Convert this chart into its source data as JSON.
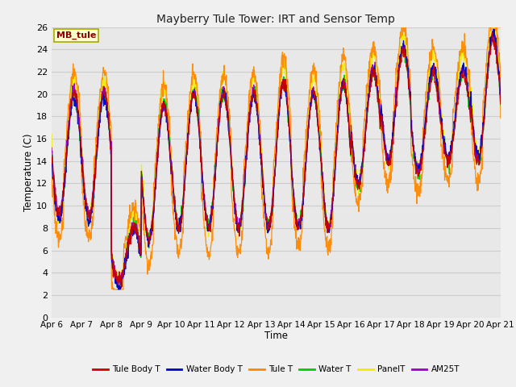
{
  "title": "Mayberry Tule Tower: IRT and Sensor Temp",
  "xlabel": "Time",
  "ylabel": "Temperature (C)",
  "ylim": [
    0,
    26
  ],
  "yticks": [
    0,
    2,
    4,
    6,
    8,
    10,
    12,
    14,
    16,
    18,
    20,
    22,
    24,
    26
  ],
  "x_labels": [
    "Apr 6",
    "Apr 7",
    "Apr 8",
    "Apr 9",
    "Apr 10",
    "Apr 11",
    "Apr 12",
    "Apr 13",
    "Apr 14",
    "Apr 15",
    "Apr 16",
    "Apr 17",
    "Apr 18",
    "Apr 19",
    "Apr 20",
    "Apr 21"
  ],
  "series_colors": {
    "Tule Body T": "#cc0000",
    "Water Body T": "#0000cc",
    "Tule T": "#ff8800",
    "Water T": "#00cc00",
    "PanelT": "#eeee00",
    "AM25T": "#9900cc"
  },
  "legend_label": "MB_tule",
  "fig_bg_color": "#f0f0f0",
  "plot_bg_color": "#e8e8e8",
  "grid_color": "#d0d0d0",
  "n_days": 15,
  "points_per_day": 96
}
